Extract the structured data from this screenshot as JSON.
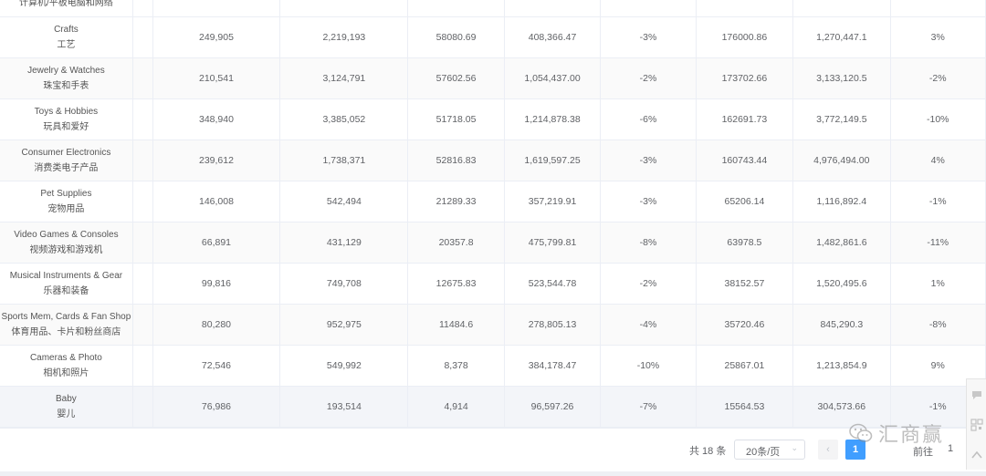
{
  "table": {
    "top_partial_label": "计算机/平板电脑和网络",
    "rows": [
      {
        "en": "Crafts",
        "zh": "工艺",
        "v1": "249,905",
        "v2": "2,219,193",
        "v3": "58080.69",
        "v4": "408,366.47",
        "v5": "-3%",
        "v6": "176000.86",
        "v7": "1,270,447.1",
        "v8": "3%"
      },
      {
        "en": "Jewelry & Watches",
        "zh": "珠宝和手表",
        "v1": "210,541",
        "v2": "3,124,791",
        "v3": "57602.56",
        "v4": "1,054,437.00",
        "v5": "-2%",
        "v6": "173702.66",
        "v7": "3,133,120.5",
        "v8": "-2%"
      },
      {
        "en": "Toys & Hobbies",
        "zh": "玩具和爱好",
        "v1": "348,940",
        "v2": "3,385,052",
        "v3": "51718.05",
        "v4": "1,214,878.38",
        "v5": "-6%",
        "v6": "162691.73",
        "v7": "3,772,149.5",
        "v8": "-10%"
      },
      {
        "en": "Consumer Electronics",
        "zh": "消费类电子产品",
        "v1": "239,612",
        "v2": "1,738,371",
        "v3": "52816.83",
        "v4": "1,619,597.25",
        "v5": "-3%",
        "v6": "160743.44",
        "v7": "4,976,494.00",
        "v8": "4%"
      },
      {
        "en": "Pet Supplies",
        "zh": "宠物用品",
        "v1": "146,008",
        "v2": "542,494",
        "v3": "21289.33",
        "v4": "357,219.91",
        "v5": "-3%",
        "v6": "65206.14",
        "v7": "1,116,892.4",
        "v8": "-1%"
      },
      {
        "en": "Video Games & Consoles",
        "zh": "视频游戏和游戏机",
        "v1": "66,891",
        "v2": "431,129",
        "v3": "20357.8",
        "v4": "475,799.81",
        "v5": "-8%",
        "v6": "63978.5",
        "v7": "1,482,861.6",
        "v8": "-11%"
      },
      {
        "en": "Musical Instruments & Gear",
        "zh": "乐器和装备",
        "v1": "99,816",
        "v2": "749,708",
        "v3": "12675.83",
        "v4": "523,544.78",
        "v5": "-2%",
        "v6": "38152.57",
        "v7": "1,520,495.6",
        "v8": "1%"
      },
      {
        "en": "Sports Mem, Cards & Fan Shop",
        "zh": "体育用品、卡片和粉丝商店",
        "v1": "80,280",
        "v2": "952,975",
        "v3": "11484.6",
        "v4": "278,805.13",
        "v5": "-4%",
        "v6": "35720.46",
        "v7": "845,290.3",
        "v8": "-8%"
      },
      {
        "en": "Cameras & Photo",
        "zh": "相机和照片",
        "v1": "72,546",
        "v2": "549,992",
        "v3": "8,378",
        "v4": "384,178.47",
        "v5": "-10%",
        "v6": "25867.01",
        "v7": "1,213,854.9",
        "v8": "9%"
      },
      {
        "en": "Baby",
        "zh": "婴儿",
        "v1": "76,986",
        "v2": "193,514",
        "v3": "4,914",
        "v4": "96,597.26",
        "v5": "-7%",
        "v6": "15564.53",
        "v7": "304,573.66",
        "v8": "-1%"
      }
    ]
  },
  "pagination": {
    "total": "共 18 条",
    "page_size": "20条/页",
    "prev": "‹",
    "current_page": "1",
    "next": "›",
    "goto_label": "前往",
    "goto_value": "1"
  },
  "watermark": {
    "text": "汇商赢",
    "icon": "wechat-icon"
  },
  "side_tools": [
    "chat-icon",
    "qrcode-icon",
    "back-to-top-icon"
  ]
}
